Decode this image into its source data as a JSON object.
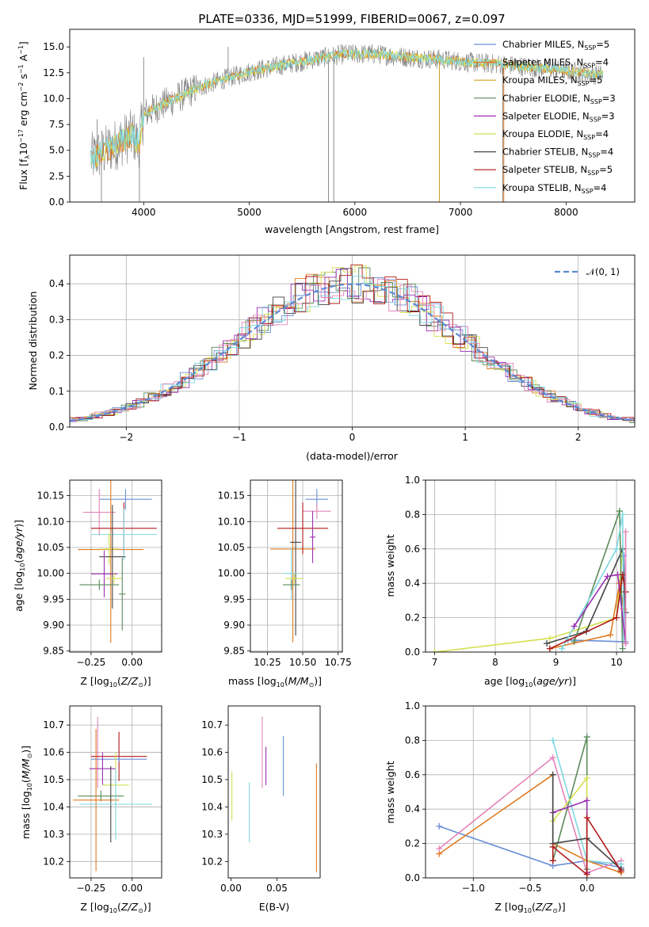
{
  "colors": {
    "Chabrier MILES": "#6a8fd6",
    "Salpeter MILES": "#e07a20",
    "Kroupa MILES": "#d4a020",
    "Chabrier ELODIE": "#5a8a5a",
    "Salpeter ELODIE": "#9b30b0",
    "Kroupa ELODIE": "#d4e050",
    "Chabrier STELIB": "#444444",
    "Salpeter STELIB": "#b01818",
    "Kroupa STELIB": "#7fd8e0",
    "pink": "#e384b8",
    "grey_data": "#808080",
    "normal": "#5b8bd6"
  },
  "chart_data": [
    {
      "id": "spectrum",
      "type": "line",
      "title": "PLATE=0336, MJD=51999, FIBERID=0067, z=0.097",
      "xlabel": "wavelength [Angstrom, rest frame]",
      "ylabel": "Flux [f",
      "xlim": [
        3300,
        8650
      ],
      "ylim": [
        0,
        16.7
      ],
      "xticks": [
        "4000",
        "5000",
        "6000",
        "7000",
        "8000"
      ],
      "yticks": [
        "0.0",
        "2.5",
        "5.0",
        "7.5",
        "10.0",
        "12.5",
        "15.0"
      ],
      "legend_position": "right",
      "legend": [
        {
          "label": "Chabrier MILES, N",
          "n": "=5"
        },
        {
          "label": "Salpeter MILES, N",
          "n": "=4"
        },
        {
          "label": "Kroupa MILES, N",
          "n": "=5"
        },
        {
          "label": "Chabrier ELODIE, N",
          "n": "=3"
        },
        {
          "label": "Salpeter ELODIE, N",
          "n": "=3"
        },
        {
          "label": "Kroupa ELODIE, N",
          "n": "=4"
        },
        {
          "label": "Chabrier STELIB, N",
          "n": "=4"
        },
        {
          "label": "Salpeter STELIB, N",
          "n": "=5"
        },
        {
          "label": "Kroupa STELIB, N",
          "n": "=4"
        }
      ],
      "continuum": [
        [
          3500,
          4.2
        ],
        [
          3650,
          5.0
        ],
        [
          3800,
          6.0
        ],
        [
          3900,
          6.5
        ],
        [
          3950,
          5.5
        ],
        [
          4000,
          8.5
        ],
        [
          4100,
          9.0
        ],
        [
          4300,
          10.0
        ],
        [
          4500,
          11.0
        ],
        [
          4800,
          12.0
        ],
        [
          5000,
          12.6
        ],
        [
          5300,
          13.2
        ],
        [
          5600,
          13.8
        ],
        [
          5900,
          14.3
        ],
        [
          6200,
          14.3
        ],
        [
          6500,
          14.0
        ],
        [
          6800,
          13.8
        ],
        [
          7100,
          13.5
        ],
        [
          7400,
          13.3
        ],
        [
          7700,
          13.0
        ],
        [
          8000,
          12.7
        ],
        [
          8300,
          12.3
        ]
      ]
    },
    {
      "id": "histogram",
      "type": "bar",
      "xlabel": "(data-model)/error",
      "ylabel": "Normed distribution",
      "xlim": [
        -2.5,
        2.5
      ],
      "ylim": [
        0,
        0.48
      ],
      "xticks": [
        "−2",
        "−1",
        "0",
        "1",
        "2"
      ],
      "yticks": [
        "0.0",
        "0.1",
        "0.2",
        "0.3",
        "0.4"
      ],
      "grid": true,
      "legend_position": "top-right",
      "legend_label": "𝒩(0, 1)"
    },
    {
      "id": "age-vs-Z",
      "type": "scatter",
      "xlabel": "Z [log",
      "ylabel": "age  [log",
      "xlim": [
        -0.38,
        0.18
      ],
      "ylim": [
        9.848,
        10.18
      ],
      "xticks": [
        "−0.25",
        "0.00"
      ],
      "yticks": [
        "9.85",
        "9.90",
        "9.95",
        "10.00",
        "10.05",
        "10.10",
        "10.15"
      ],
      "grid": true,
      "points": [
        {
          "c": "Chabrier MILES",
          "x": -0.04,
          "xerr": 0.16,
          "y": 10.143,
          "yerr": 0.02
        },
        {
          "c": "Salpeter MILES",
          "x": -0.13,
          "xerr": 0.2,
          "y": 10.046,
          "yerr": 0.18
        },
        {
          "c": "pink",
          "x": -0.2,
          "xerr": 0.1,
          "y": 10.118,
          "yerr": 0.045
        },
        {
          "c": "Salpeter STELIB",
          "x": -0.05,
          "xerr": 0.2,
          "y": 10.087,
          "yerr": 0.05
        },
        {
          "c": "Kroupa STELIB",
          "x": -0.05,
          "xerr": 0.2,
          "y": 10.075,
          "yerr": 0.05
        },
        {
          "c": "Kroupa ELODIE",
          "x": -0.14,
          "xerr": 0.06,
          "y": 10.047,
          "yerr": 0.03
        },
        {
          "c": "Chabrier STELIB",
          "x": -0.12,
          "xerr": 0.08,
          "y": 10.032,
          "yerr": 0.1
        },
        {
          "c": "Salpeter ELODIE",
          "x": -0.17,
          "xerr": 0.08,
          "y": 9.999,
          "yerr": 0.045
        },
        {
          "c": "Kroupa ELODIE",
          "x": -0.11,
          "xerr": 0.05,
          "y": 9.99,
          "yerr": 0.01
        },
        {
          "c": "Chabrier ELODIE",
          "x": -0.2,
          "xerr": 0.12,
          "y": 9.978,
          "yerr": 0.01
        },
        {
          "c": "Chabrier ELODIE",
          "x": -0.06,
          "xerr": 0.02,
          "y": 9.96,
          "yerr": 0.07
        }
      ]
    },
    {
      "id": "age-vs-mass",
      "type": "scatter",
      "xlabel": "mass [log",
      "ylabel": "",
      "xlim": [
        10.13,
        10.78
      ],
      "ylim": [
        9.848,
        10.18
      ],
      "xticks": [
        "10.25",
        "10.50",
        "10.75"
      ],
      "yticks": [
        "9.85",
        "9.90",
        "9.95",
        "10.00",
        "10.05",
        "10.10",
        "10.15"
      ],
      "grid": true,
      "points": [
        {
          "c": "Chabrier MILES",
          "x": 10.6,
          "xerr": 0.08,
          "y": 10.143,
          "yerr": 0.02
        },
        {
          "c": "pink",
          "x": 10.6,
          "xerr": 0.1,
          "y": 10.12,
          "yerr": 0.015
        },
        {
          "c": "Salpeter MILES",
          "x": 10.43,
          "xerr": 0.16,
          "y": 10.047,
          "yerr": 0.18
        },
        {
          "c": "Salpeter STELIB",
          "x": 10.5,
          "xerr": 0.18,
          "y": 10.087,
          "yerr": 0.05
        },
        {
          "c": "Chabrier STELIB",
          "x": 10.45,
          "xerr": 0.04,
          "y": 10.06,
          "yerr": 0.18
        },
        {
          "c": "Kroupa STELIB",
          "x": 10.42,
          "xerr": 0.05,
          "y": 10.0,
          "yerr": 0.05
        },
        {
          "c": "Kroupa ELODIE",
          "x": 10.44,
          "xerr": 0.06,
          "y": 9.99,
          "yerr": 0.01
        },
        {
          "c": "Chabrier ELODIE",
          "x": 10.42,
          "xerr": 0.06,
          "y": 9.978,
          "yerr": 0.01
        },
        {
          "c": "Salpeter ELODIE",
          "x": 10.57,
          "xerr": 0.02,
          "y": 10.07,
          "yerr": 0.05
        }
      ]
    },
    {
      "id": "massweight-vs-age",
      "type": "line",
      "xlabel": "age  [log",
      "ylabel": "mass weight",
      "xlim": [
        6.85,
        10.3
      ],
      "ylim": [
        0,
        1.0
      ],
      "xticks": [
        "7",
        "8",
        "9",
        "10"
      ],
      "yticks": [
        "0.0",
        "0.2",
        "0.4",
        "0.6",
        "0.8",
        "1.0"
      ],
      "grid": true,
      "series": [
        {
          "c": "Kroupa ELODIE",
          "pts": [
            [
              7.0,
              0.0
            ],
            [
              8.9,
              0.08
            ],
            [
              10.0,
              0.2
            ],
            [
              10.1,
              0.6
            ]
          ]
        },
        {
          "c": "Chabrier MILES",
          "pts": [
            [
              9.2,
              0.07
            ],
            [
              10.15,
              0.06
            ],
            [
              10.12,
              0.56
            ]
          ]
        },
        {
          "c": "Salpeter MILES",
          "pts": [
            [
              8.9,
              0.02
            ],
            [
              9.9,
              0.1
            ],
            [
              10.05,
              0.4
            ],
            [
              10.12,
              0.25
            ]
          ]
        },
        {
          "c": "Chabrier STELIB",
          "pts": [
            [
              8.85,
              0.05
            ],
            [
              9.5,
              0.12
            ],
            [
              10.1,
              0.6
            ],
            [
              10.15,
              0.23
            ]
          ]
        },
        {
          "c": "Chabrier ELODIE",
          "pts": [
            [
              9.3,
              0.06
            ],
            [
              10.05,
              0.82
            ],
            [
              10.1,
              0.02
            ]
          ]
        },
        {
          "c": "Kroupa STELIB",
          "pts": [
            [
              9.1,
              0.02
            ],
            [
              10.0,
              0.6
            ],
            [
              10.1,
              0.8
            ],
            [
              10.12,
              0.08
            ]
          ]
        },
        {
          "c": "Salpeter ELODIE",
          "pts": [
            [
              9.3,
              0.15
            ],
            [
              9.85,
              0.44
            ],
            [
              10.02,
              0.45
            ],
            [
              10.15,
              0.05
            ]
          ]
        },
        {
          "c": "Salpeter STELIB",
          "pts": [
            [
              8.9,
              0.02
            ],
            [
              10.0,
              0.2
            ],
            [
              10.1,
              0.45
            ],
            [
              10.15,
              0.35
            ]
          ]
        },
        {
          "c": "pink",
          "pts": [
            [
              10.15,
              0.05
            ],
            [
              10.15,
              0.7
            ]
          ]
        }
      ]
    },
    {
      "id": "mass-vs-Z",
      "type": "scatter",
      "xlabel": "Z [log",
      "ylabel": "mass [log",
      "xlim": [
        -0.38,
        0.18
      ],
      "ylim": [
        10.14,
        10.77
      ],
      "xticks": [
        "−0.25",
        "0.00"
      ],
      "yticks": [
        "10.2",
        "10.3",
        "10.4",
        "10.5",
        "10.6",
        "10.7"
      ],
      "grid": true,
      "points": [
        {
          "c": "pink",
          "x": -0.21,
          "xerr": 0.01,
          "y": 10.6,
          "yerr": 0.13
        },
        {
          "c": "Salpeter STELIB",
          "x": -0.08,
          "xerr": 0.17,
          "y": 10.585,
          "yerr": 0.09
        },
        {
          "c": "Chabrier MILES",
          "x": -0.08,
          "xerr": 0.17,
          "y": 10.575,
          "yerr": 0.01
        },
        {
          "c": "Salpeter ELODIE",
          "x": -0.18,
          "xerr": 0.08,
          "y": 10.54,
          "yerr": 0.06
        },
        {
          "c": "Kroupa ELODIE",
          "x": -0.1,
          "xerr": 0.08,
          "y": 10.48,
          "yerr": 0.12
        },
        {
          "c": "Chabrier ELODIE",
          "x": -0.19,
          "xerr": 0.14,
          "y": 10.44,
          "yerr": 0.02
        },
        {
          "c": "Salpeter MILES",
          "x": -0.22,
          "xerr": 0.14,
          "y": 10.425,
          "yerr": 0.26
        },
        {
          "c": "Chabrier STELIB",
          "x": -0.13,
          "xerr": 0.1,
          "y": 10.41,
          "yerr": 0.14
        },
        {
          "c": "Kroupa STELIB",
          "x": -0.1,
          "xerr": 0.22,
          "y": 10.41,
          "yerr": 0.13
        }
      ]
    },
    {
      "id": "mass-vs-ebv",
      "type": "scatter",
      "xlabel": "E(B-V)",
      "ylabel": "",
      "xlim": [
        -0.003,
        0.097
      ],
      "ylim": [
        10.14,
        10.77
      ],
      "xticks": [
        "0.00",
        "0.05"
      ],
      "yticks": [
        "10.2",
        "10.3",
        "10.4",
        "10.5",
        "10.6",
        "10.7"
      ],
      "grid": false,
      "points": [
        {
          "c": "Kroupa ELODIE",
          "x": 0.001,
          "xerr": 0,
          "y": 10.44,
          "yerr": 0.09
        },
        {
          "c": "Kroupa STELIB",
          "x": 0.02,
          "xerr": 0,
          "y": 10.38,
          "yerr": 0.11
        },
        {
          "c": "pink",
          "x": 0.034,
          "xerr": 0,
          "y": 10.6,
          "yerr": 0.13
        },
        {
          "c": "Salpeter ELODIE",
          "x": 0.038,
          "xerr": 0,
          "y": 10.55,
          "yerr": 0.07
        },
        {
          "c": "Chabrier MILES",
          "x": 0.057,
          "xerr": 0,
          "y": 10.55,
          "yerr": 0.11
        },
        {
          "c": "Salpeter MILES",
          "x": 0.093,
          "xerr": 0,
          "y": 10.36,
          "yerr": 0.2
        }
      ]
    },
    {
      "id": "massweight-vs-Z",
      "type": "line",
      "xlabel": "Z [log",
      "ylabel": "mass weight",
      "xlim": [
        -1.42,
        0.42
      ],
      "ylim": [
        0,
        1.0
      ],
      "xticks": [
        "−1.0",
        "−0.5",
        "0.0"
      ],
      "yticks": [
        "0.0",
        "0.2",
        "0.4",
        "0.6",
        "0.8",
        "1.0"
      ],
      "grid": true,
      "series": [
        {
          "c": "Chabrier MILES",
          "pts": [
            [
              -1.3,
              0.3
            ],
            [
              -0.3,
              0.07
            ],
            [
              0.0,
              0.1
            ],
            [
              0.3,
              0.06
            ]
          ]
        },
        {
          "c": "Salpeter MILES",
          "pts": [
            [
              -1.3,
              0.14
            ],
            [
              -0.3,
              0.6
            ],
            [
              -0.3,
              0.2
            ],
            [
              0.0,
              0.1
            ],
            [
              0.3,
              0.03
            ]
          ]
        },
        {
          "c": "pink",
          "pts": [
            [
              -1.3,
              0.17
            ],
            [
              -0.3,
              0.7
            ],
            [
              0.0,
              0.03
            ],
            [
              0.3,
              0.1
            ]
          ]
        },
        {
          "c": "Kroupa STELIB",
          "pts": [
            [
              -0.3,
              0.8
            ],
            [
              0.0,
              0.1
            ],
            [
              0.3,
              0.08
            ]
          ]
        },
        {
          "c": "Chabrier ELODIE",
          "pts": [
            [
              -0.3,
              0.1
            ],
            [
              0.0,
              0.82
            ],
            [
              0.0,
              0.05
            ]
          ]
        },
        {
          "c": "Kroupa ELODIE",
          "pts": [
            [
              -0.3,
              0.33
            ],
            [
              0.0,
              0.58
            ],
            [
              0.0,
              0.1
            ]
          ]
        },
        {
          "c": "Salpeter ELODIE",
          "pts": [
            [
              -0.3,
              0.38
            ],
            [
              0.0,
              0.45
            ],
            [
              0.0,
              0.03
            ]
          ]
        },
        {
          "c": "Chabrier STELIB",
          "pts": [
            [
              -0.3,
              0.6
            ],
            [
              -0.3,
              0.2
            ],
            [
              0.0,
              0.23
            ],
            [
              0.3,
              0.05
            ]
          ]
        },
        {
          "c": "Salpeter STELIB",
          "pts": [
            [
              -0.3,
              0.1
            ],
            [
              -0.3,
              0.18
            ],
            [
              0.0,
              0.02
            ],
            [
              0.0,
              0.35
            ],
            [
              0.3,
              0.04
            ]
          ]
        }
      ]
    }
  ]
}
